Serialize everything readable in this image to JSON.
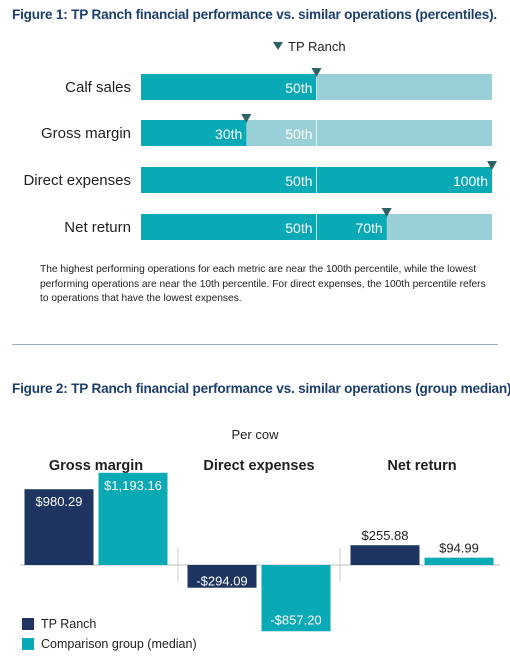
{
  "colors": {
    "teal": "#0aa9b6",
    "light_teal": "#99cfd7",
    "navy": "#1d3560",
    "marker": "#2e6168",
    "title": "#1d3f6e"
  },
  "chart_data": [
    {
      "type": "bar",
      "orientation": "horizontal",
      "title": "Figure 1: TP Ranch financial performance vs. similar operations (percentiles).",
      "marker_legend": "TP Ranch",
      "xlim": [
        0,
        100
      ],
      "categories": [
        "Calf sales",
        "Gross margin",
        "Direct expenses",
        "Net return"
      ],
      "comparison_median": [
        50,
        50,
        50,
        50
      ],
      "tp_ranch_percentile": [
        50,
        30,
        100,
        70
      ],
      "median_labels": [
        "50th",
        "50th",
        "50th",
        "50th"
      ],
      "tp_ranch_labels": [
        "",
        "30th",
        "100th",
        "70th"
      ],
      "note": "The highest performing operations for each metric are near the 100th percentile, while the lowest performing operations are near the 10th percentile. For direct expenses, the 100th percentile refers to operations that have the lowest expenses."
    },
    {
      "type": "bar",
      "title": "Figure 2: TP Ranch financial performance vs. similar operations (group median).",
      "subtitle": "Per cow",
      "categories": [
        "Gross margin",
        "Direct expenses",
        "Net return"
      ],
      "series": [
        {
          "name": "TP Ranch",
          "values": [
            980.29,
            -294.09,
            255.88
          ],
          "labels": [
            "$980.29",
            "-$294.09",
            "$255.88"
          ]
        },
        {
          "name": "Comparison group (median)",
          "values": [
            1193.16,
            -857.2,
            94.99
          ],
          "labels": [
            "$1,193.16",
            "-$857.20",
            "$94.99"
          ]
        }
      ],
      "ylim": [
        -1100,
        1250
      ],
      "legend": "bottom-left"
    }
  ]
}
